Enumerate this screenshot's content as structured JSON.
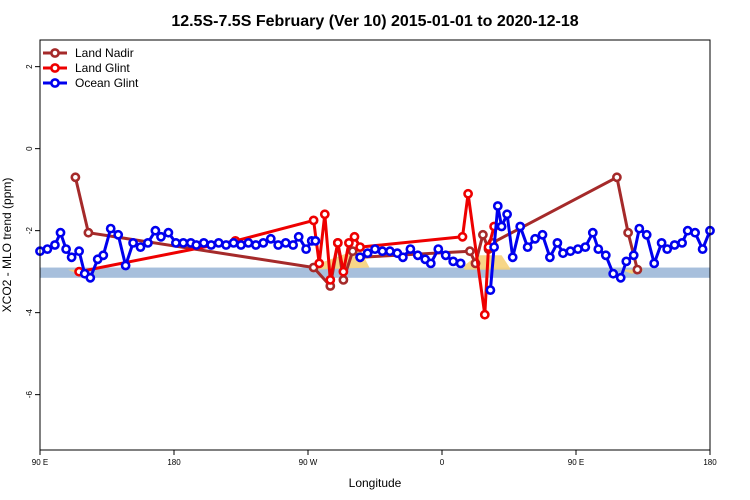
{
  "chart_data": {
    "type": "line",
    "title": "12.5S-7.5S February (Ver 10)   2015-01-01 to 2020-12-18",
    "xlabel": "Longitude",
    "ylabel": "XCO2 - MLO trend (ppm)",
    "xlim": [
      90,
      450
    ],
    "ylim": [
      -7.35,
      2.65
    ],
    "x_ticks": [
      {
        "value": 90,
        "label": "90 E"
      },
      {
        "value": 162,
        "label": "180"
      },
      {
        "value": 234,
        "label": "90 W"
      },
      {
        "value": 306,
        "label": "0"
      },
      {
        "value": 378,
        "label": "90 E"
      },
      {
        "value": 450,
        "label": "180"
      }
    ],
    "y_ticks": [
      {
        "value": 2,
        "label": "2"
      },
      {
        "value": 0,
        "label": "0"
      },
      {
        "value": -2,
        "label": "-2"
      },
      {
        "value": -4,
        "label": "-4"
      },
      {
        "value": -6,
        "label": "-6"
      }
    ],
    "grid": false,
    "legend_position": "top-left",
    "band": {
      "y_low": -3.15,
      "y_high": -2.9,
      "color": "#a7bfdc"
    },
    "land_shading_color": "#f6d27a",
    "land_shading": [
      [
        [
          105,
          -2.95
        ],
        [
          110,
          -3.05
        ],
        [
          116,
          -2.95
        ]
      ],
      [
        [
          237,
          -2.85
        ],
        [
          255,
          -2.55
        ],
        [
          262,
          -2.45
        ],
        [
          267,
          -2.9
        ],
        [
          237,
          -2.95
        ]
      ],
      [
        [
          318,
          -2.85
        ],
        [
          325,
          -2.6
        ],
        [
          338,
          -2.6
        ],
        [
          343,
          -2.95
        ],
        [
          318,
          -2.95
        ]
      ],
      [
        [
          402,
          -2.95
        ],
        [
          408,
          -3.05
        ],
        [
          415,
          -2.95
        ]
      ]
    ],
    "series": [
      {
        "name": "Land Nadir",
        "color": "#a52a2a",
        "points": [
          [
            109,
            -0.7
          ],
          [
            116,
            -2.05
          ],
          [
            237,
            -2.9
          ],
          [
            246,
            -3.35
          ],
          [
            250,
            -2.3
          ],
          [
            253,
            -3.2
          ],
          [
            258,
            -2.5
          ],
          [
            262,
            -2.65
          ],
          [
            321,
            -2.5
          ],
          [
            324,
            -2.8
          ],
          [
            328,
            -2.1
          ],
          [
            331,
            -2.45
          ],
          [
            333,
            -2.3
          ],
          [
            400,
            -0.7
          ],
          [
            406,
            -2.05
          ],
          [
            411,
            -2.95
          ]
        ]
      },
      {
        "name": "Land Glint",
        "color": "#ee0000",
        "points": [
          [
            111,
            -3.0
          ],
          [
            195,
            -2.25
          ],
          [
            237,
            -1.75
          ],
          [
            240,
            -2.8
          ],
          [
            243,
            -1.6
          ],
          [
            246,
            -3.2
          ],
          [
            250,
            -2.3
          ],
          [
            253,
            -3.0
          ],
          [
            256,
            -2.3
          ],
          [
            259,
            -2.15
          ],
          [
            262,
            -2.4
          ],
          [
            317,
            -2.15
          ],
          [
            320,
            -1.1
          ],
          [
            329,
            -4.05
          ],
          [
            331,
            -2.4
          ],
          [
            334,
            -1.9
          ]
        ]
      },
      {
        "name": "Ocean Glint",
        "color": "#0000ee",
        "segments": [
          [
            [
              90,
              -2.5
            ],
            [
              94,
              -2.45
            ],
            [
              98,
              -2.35
            ],
            [
              101,
              -2.05
            ],
            [
              104,
              -2.45
            ],
            [
              107,
              -2.65
            ],
            [
              111,
              -2.5
            ],
            [
              114,
              -3.05
            ],
            [
              117,
              -3.15
            ],
            [
              121,
              -2.7
            ],
            [
              124,
              -2.6
            ],
            [
              128,
              -1.95
            ],
            [
              132,
              -2.1
            ],
            [
              136,
              -2.85
            ],
            [
              140,
              -2.3
            ],
            [
              144,
              -2.4
            ],
            [
              148,
              -2.3
            ],
            [
              152,
              -2.0
            ],
            [
              155,
              -2.15
            ],
            [
              159,
              -2.05
            ],
            [
              163,
              -2.3
            ],
            [
              167,
              -2.3
            ],
            [
              171,
              -2.3
            ],
            [
              174,
              -2.35
            ],
            [
              178,
              -2.3
            ],
            [
              182,
              -2.35
            ],
            [
              186,
              -2.3
            ],
            [
              190,
              -2.35
            ],
            [
              194,
              -2.3
            ],
            [
              198,
              -2.35
            ],
            [
              202,
              -2.3
            ],
            [
              206,
              -2.35
            ],
            [
              210,
              -2.3
            ],
            [
              214,
              -2.2
            ],
            [
              218,
              -2.35
            ],
            [
              222,
              -2.3
            ],
            [
              226,
              -2.35
            ],
            [
              229,
              -2.15
            ],
            [
              233,
              -2.45
            ],
            [
              236,
              -2.25
            ],
            [
              238,
              -2.25
            ]
          ],
          [
            [
              262,
              -2.65
            ],
            [
              266,
              -2.55
            ],
            [
              270,
              -2.45
            ],
            [
              274,
              -2.5
            ],
            [
              278,
              -2.5
            ],
            [
              282,
              -2.55
            ],
            [
              285,
              -2.65
            ],
            [
              289,
              -2.45
            ],
            [
              293,
              -2.6
            ],
            [
              297,
              -2.7
            ],
            [
              300,
              -2.8
            ],
            [
              304,
              -2.45
            ],
            [
              308,
              -2.6
            ],
            [
              312,
              -2.75
            ],
            [
              316,
              -2.8
            ]
          ],
          [
            [
              332,
              -3.45
            ],
            [
              334,
              -2.4
            ],
            [
              336,
              -1.4
            ],
            [
              338,
              -1.9
            ],
            [
              341,
              -1.6
            ],
            [
              344,
              -2.65
            ],
            [
              348,
              -1.9
            ],
            [
              352,
              -2.4
            ],
            [
              356,
              -2.2
            ],
            [
              360,
              -2.1
            ],
            [
              364,
              -2.65
            ],
            [
              368,
              -2.3
            ],
            [
              371,
              -2.55
            ],
            [
              375,
              -2.5
            ],
            [
              379,
              -2.45
            ],
            [
              383,
              -2.4
            ],
            [
              387,
              -2.05
            ],
            [
              390,
              -2.45
            ],
            [
              394,
              -2.6
            ],
            [
              398,
              -3.05
            ],
            [
              402,
              -3.15
            ],
            [
              405,
              -2.75
            ],
            [
              409,
              -2.6
            ],
            [
              412,
              -1.95
            ],
            [
              416,
              -2.1
            ],
            [
              420,
              -2.8
            ],
            [
              424,
              -2.3
            ],
            [
              427,
              -2.45
            ],
            [
              431,
              -2.35
            ],
            [
              435,
              -2.3
            ],
            [
              438,
              -2.0
            ],
            [
              442,
              -2.05
            ],
            [
              446,
              -2.45
            ],
            [
              450,
              -2.0
            ]
          ]
        ]
      }
    ]
  }
}
